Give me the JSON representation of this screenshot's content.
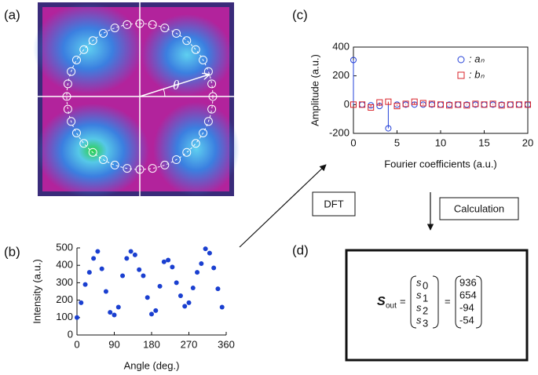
{
  "panels": {
    "a": "(a)",
    "b": "(b)",
    "c": "(c)",
    "d": "(d)"
  },
  "image_a": {
    "angle_symbol": "θ"
  },
  "diagram": {
    "dft": "DFT",
    "calculation": "Calculation",
    "equation": {
      "lhs": "S",
      "lhs_sub": "out",
      "equals": "=",
      "symbols": [
        {
          "base": "s",
          "sub": "0"
        },
        {
          "base": "s",
          "sub": "1"
        },
        {
          "base": "s",
          "sub": "2"
        },
        {
          "base": "s",
          "sub": "3"
        }
      ],
      "values": [
        936,
        654,
        -94,
        -54
      ]
    }
  },
  "chart_data": [
    {
      "type": "scatter",
      "xlabel": "Angle (deg.)",
      "ylabel": "Intensity (a.u.)",
      "x": [
        0,
        10,
        20,
        30,
        40,
        50,
        60,
        70,
        80,
        90,
        100,
        110,
        120,
        130,
        140,
        150,
        160,
        170,
        180,
        190,
        200,
        210,
        220,
        230,
        240,
        250,
        260,
        270,
        280,
        290,
        300,
        310,
        320,
        330,
        340,
        350
      ],
      "values": [
        100,
        185,
        290,
        360,
        440,
        480,
        380,
        250,
        130,
        115,
        160,
        340,
        440,
        480,
        460,
        375,
        340,
        215,
        120,
        140,
        280,
        420,
        430,
        390,
        300,
        225,
        165,
        185,
        270,
        360,
        410,
        495,
        470,
        385,
        265,
        160
      ],
      "color": "#1a3fd0",
      "xlim": [
        0,
        360
      ],
      "ylim": [
        0,
        500
      ],
      "xticks": [
        0,
        90,
        180,
        270,
        360
      ],
      "yticks": [
        0,
        100,
        200,
        300,
        400,
        500
      ]
    },
    {
      "type": "stem",
      "xlabel": "Fourier coefficients (a.u.)",
      "ylabel": "Amplitude (a.u.)",
      "x": [
        0,
        1,
        2,
        3,
        4,
        5,
        6,
        7,
        8,
        9,
        10,
        11,
        12,
        13,
        14,
        15,
        16,
        17,
        18,
        19,
        20
      ],
      "series": [
        {
          "name": ": aₙ",
          "color": "#2340d8",
          "marker": "circle",
          "values": [
            310,
            0,
            -5,
            -10,
            -165,
            0,
            0,
            0,
            0,
            0,
            0,
            0,
            0,
            0,
            0,
            0,
            0,
            0,
            0,
            0,
            0
          ]
        },
        {
          "name": ": bₙ",
          "color": "#d8232a",
          "marker": "square",
          "values": [
            0,
            0,
            -20,
            15,
            20,
            -10,
            5,
            20,
            10,
            5,
            0,
            -5,
            0,
            -5,
            5,
            0,
            5,
            -5,
            0,
            0,
            0
          ]
        }
      ],
      "xlim": [
        0,
        20
      ],
      "ylim": [
        -200,
        400
      ],
      "xticks": [
        0,
        5,
        10,
        15,
        20
      ],
      "yticks": [
        -200,
        0,
        200,
        400
      ],
      "legend": "top-right"
    }
  ]
}
